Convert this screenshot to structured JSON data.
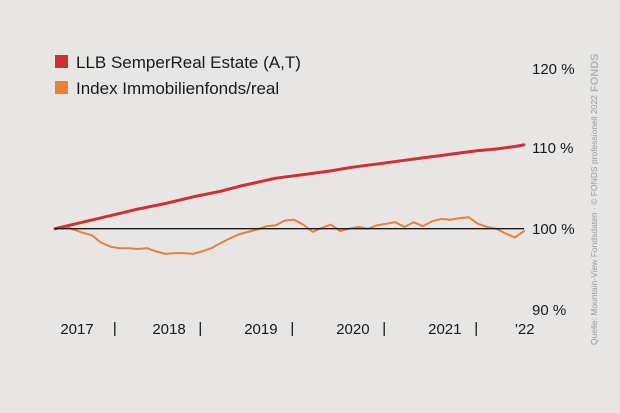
{
  "chart_data": {
    "type": "line",
    "legend_position": "top-left",
    "grid": false,
    "ylim": [
      90,
      120
    ],
    "xlim": [
      2017.0,
      2022.1
    ],
    "y_ticks": [
      {
        "value": 120,
        "label": "120 %"
      },
      {
        "value": 110,
        "label": "110 %"
      },
      {
        "value": 100,
        "label": "100 %"
      },
      {
        "value": 90,
        "label": "90 %"
      }
    ],
    "x_labels": [
      {
        "x": 2017.0,
        "label": "2017"
      },
      {
        "x": 2018.0,
        "label": "2018"
      },
      {
        "x": 2019.0,
        "label": "2019"
      },
      {
        "x": 2020.0,
        "label": "2020"
      },
      {
        "x": 2021.0,
        "label": "2021"
      },
      {
        "x": 2022.0,
        "label": "'22"
      }
    ],
    "x_separators": [
      2017.65,
      2018.58,
      2019.58,
      2020.58,
      2021.58
    ],
    "reference_line": 100,
    "series": [
      {
        "name": "LLB SemperReal Estate (A,T)",
        "color": "#d03033",
        "x": [
          2017.0,
          2017.3,
          2017.6,
          2017.9,
          2018.2,
          2018.5,
          2018.8,
          2019.0,
          2019.2,
          2019.4,
          2019.6,
          2019.8,
          2020.0,
          2020.2,
          2020.4,
          2020.6,
          2020.8,
          2021.0,
          2021.2,
          2021.4,
          2021.6,
          2021.8,
          2022.0,
          2022.1
        ],
        "values": [
          100.0,
          100.8,
          101.6,
          102.4,
          103.1,
          103.9,
          104.6,
          105.2,
          105.7,
          106.2,
          106.5,
          106.8,
          107.1,
          107.5,
          107.8,
          108.1,
          108.4,
          108.7,
          109.0,
          109.3,
          109.6,
          109.8,
          110.1,
          110.3
        ]
      },
      {
        "name": "Index Immobilienfonds/real",
        "color": "#e8803c",
        "x": [
          2017.0,
          2017.1,
          2017.2,
          2017.3,
          2017.4,
          2017.5,
          2017.6,
          2017.7,
          2017.8,
          2017.9,
          2018.0,
          2018.1,
          2018.2,
          2018.3,
          2018.4,
          2018.5,
          2018.6,
          2018.7,
          2018.8,
          2018.9,
          2019.0,
          2019.1,
          2019.2,
          2019.3,
          2019.4,
          2019.5,
          2019.6,
          2019.7,
          2019.8,
          2019.9,
          2020.0,
          2020.1,
          2020.2,
          2020.3,
          2020.4,
          2020.5,
          2020.6,
          2020.7,
          2020.8,
          2020.9,
          2021.0,
          2021.1,
          2021.2,
          2021.3,
          2021.4,
          2021.5,
          2021.6,
          2021.7,
          2021.8,
          2021.9,
          2022.0,
          2022.1
        ],
        "values": [
          100.0,
          100.3,
          99.9,
          99.5,
          99.2,
          98.3,
          97.8,
          97.6,
          97.6,
          97.5,
          97.6,
          97.2,
          96.9,
          97.0,
          97.0,
          96.9,
          97.2,
          97.6,
          98.2,
          98.8,
          99.3,
          99.6,
          99.9,
          100.3,
          100.4,
          101.0,
          101.1,
          100.5,
          99.6,
          100.1,
          100.5,
          99.7,
          100.0,
          100.2,
          100.0,
          100.4,
          100.6,
          100.8,
          100.2,
          100.8,
          100.3,
          100.9,
          101.2,
          101.1,
          101.3,
          101.4,
          100.6,
          100.2,
          100.0,
          99.4,
          98.9,
          99.7
        ]
      }
    ]
  },
  "side_text": "Quelle: Mountain-View Fondsdaten · © FONDS professionell 2022",
  "logo_text": "FONDS"
}
